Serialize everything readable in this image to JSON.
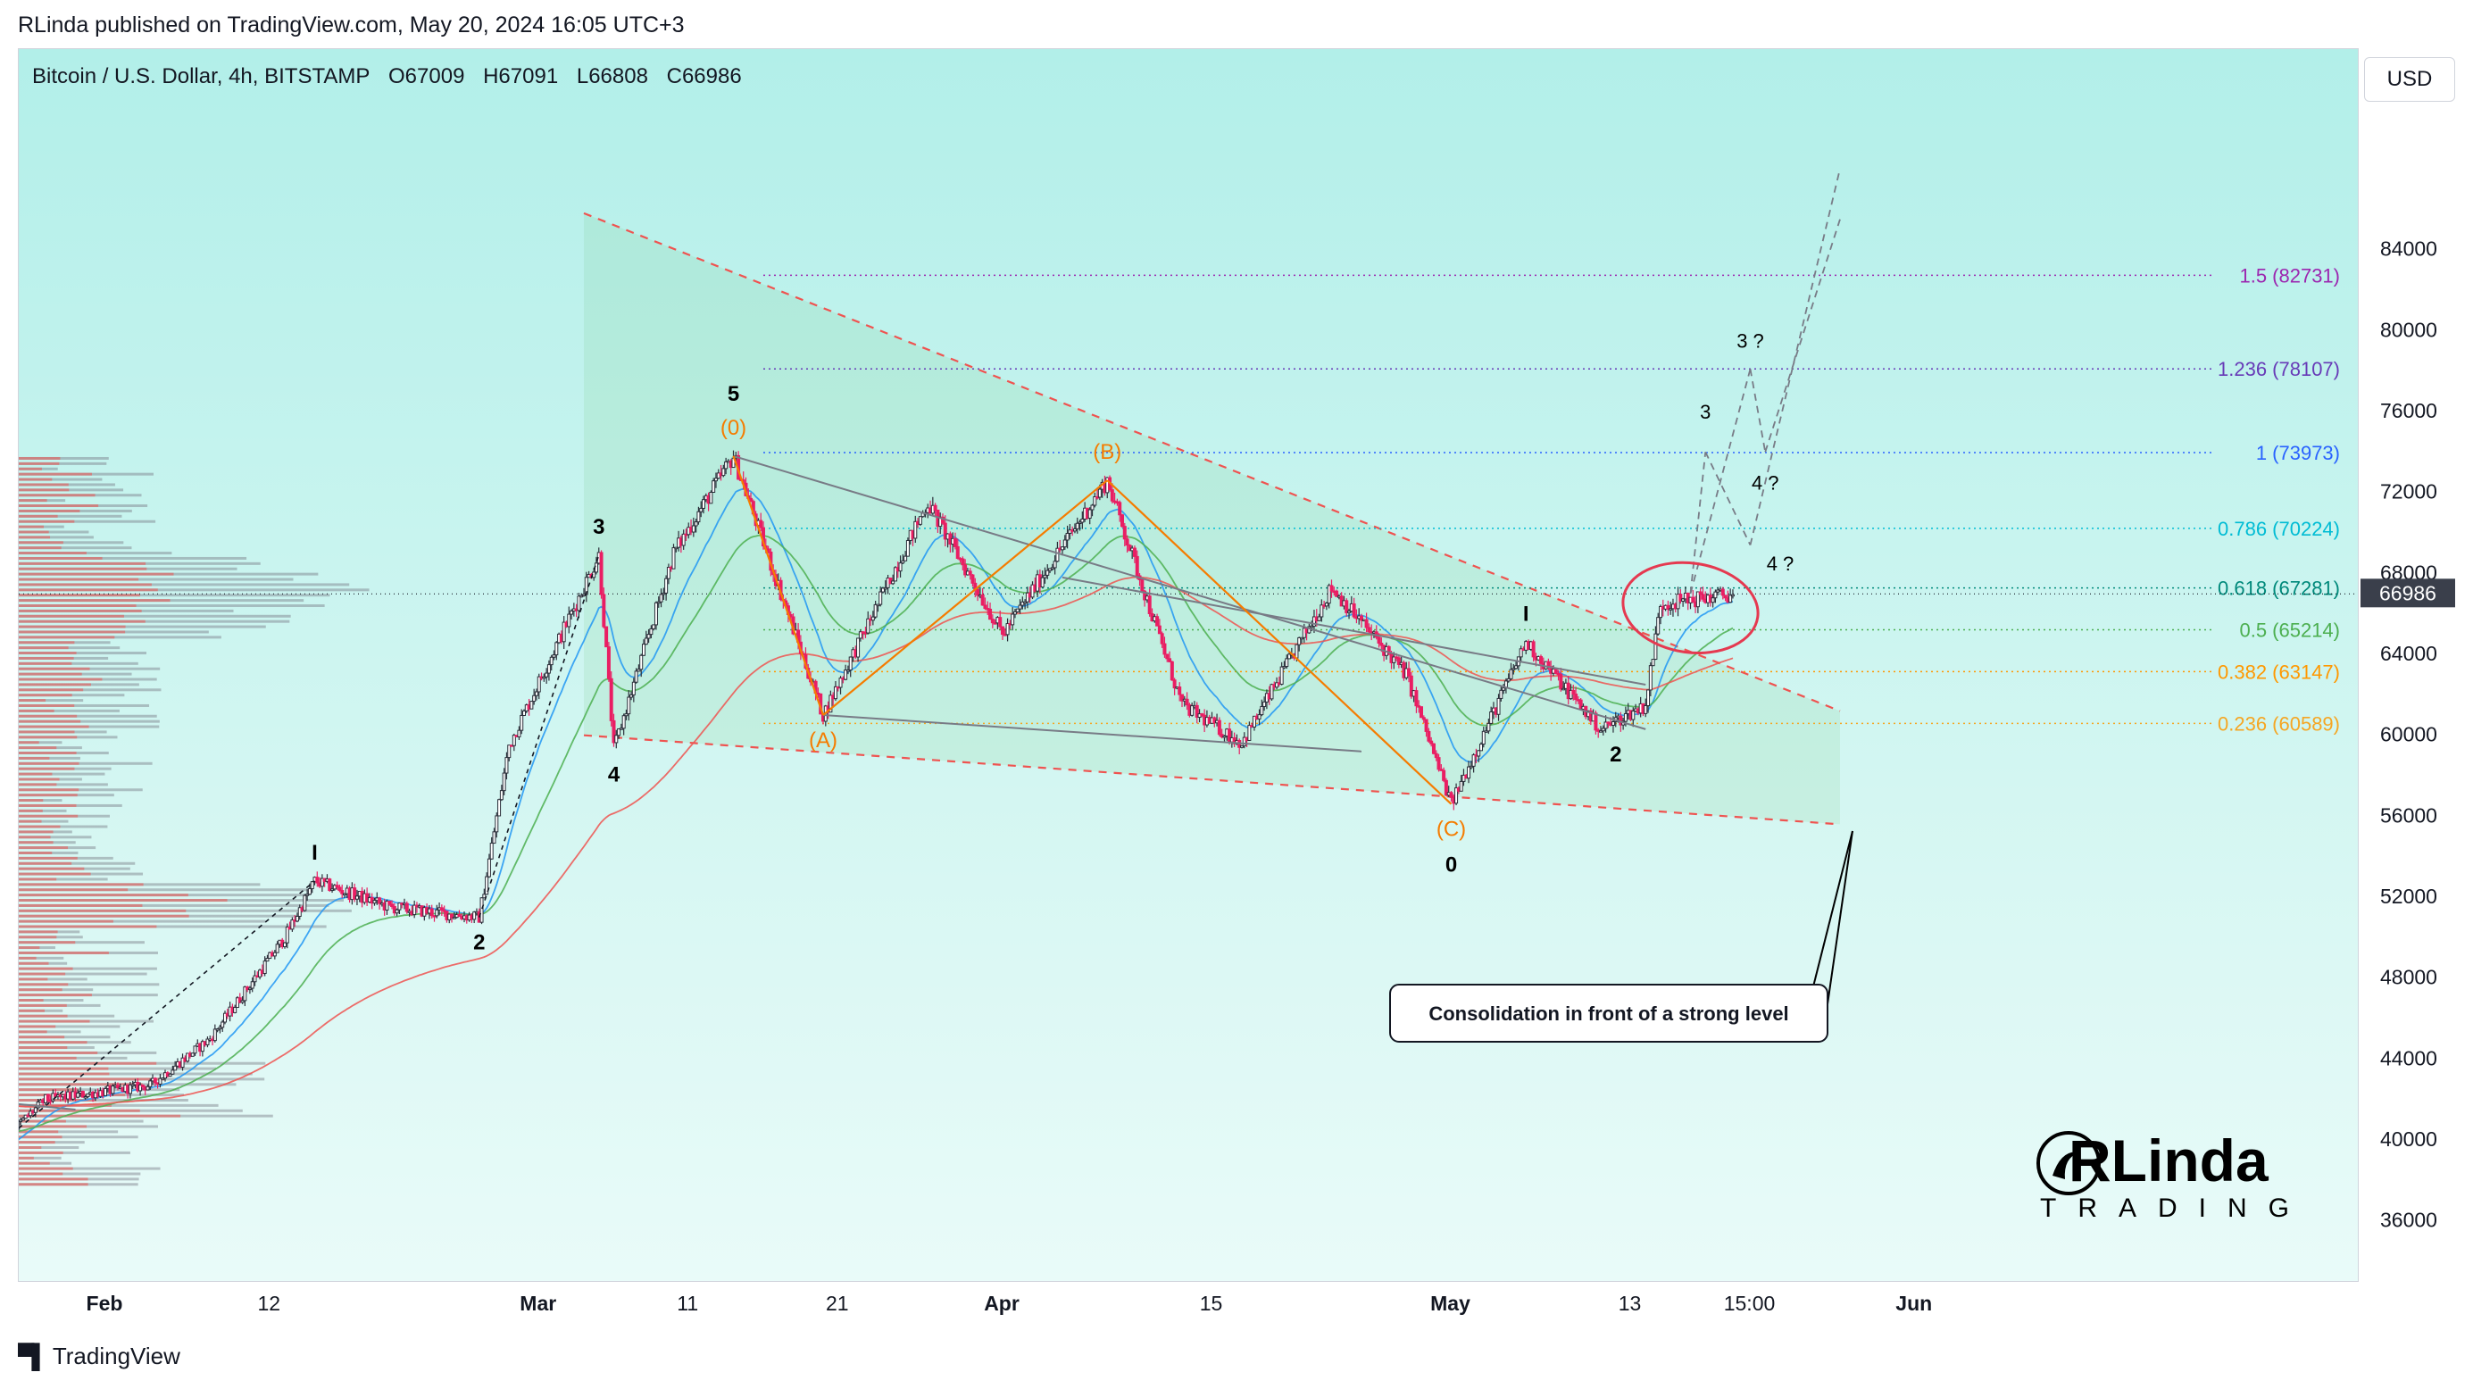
{
  "header": {
    "publisher_line": "RLinda published on TradingView.com, May 20, 2024 16:05 UTC+3"
  },
  "symbol": {
    "name": "Bitcoin / U.S. Dollar, 4h, BITSTAMP",
    "open": "O67009",
    "high": "H67091",
    "low": "L66808",
    "close": "C66986"
  },
  "currency_button": "USD",
  "footer": {
    "brand": "TradingView"
  },
  "logo": {
    "text_top": "RLinda",
    "text_bottom": "TRADING"
  },
  "callout": "Consolidation in front of a strong level",
  "colors": {
    "bull": "#26a69a",
    "bear": "#ef5350",
    "candle": "#e91e63",
    "fib_purple": "#9c27b0",
    "fib_blue": "#2962ff",
    "fib_teal": "#00bcd4",
    "fib_green": "#4caf50",
    "fib_orange": "#ff9800",
    "wave_orange": "#f57c00",
    "ma_blue": "#2196f3",
    "ma_green": "#4caf50",
    "ma_red": "#ef5350"
  },
  "chart_data": {
    "type": "candlestick",
    "title": "Bitcoin / U.S. Dollar, 4h, BITSTAMP",
    "ylim": [
      34000,
      88000
    ],
    "y_ticks": [
      "84000",
      "80000",
      "76000",
      "72000",
      "68000",
      "64000",
      "60000",
      "56000",
      "52000",
      "48000",
      "44000",
      "40000",
      "36000"
    ],
    "x_ticks": [
      "Feb",
      "12",
      "Mar",
      "11",
      "21",
      "Apr",
      "15",
      "May",
      "13",
      "15:00",
      "Jun"
    ],
    "current_price": "66986",
    "price_path": [
      {
        "date": "2024-01-16",
        "price": 43000
      },
      {
        "date": "2024-01-20",
        "price": 41500
      },
      {
        "date": "2024-01-23",
        "price": 38600
      },
      {
        "date": "2024-01-28",
        "price": 42000
      },
      {
        "date": "2024-02-04",
        "price": 42700
      },
      {
        "date": "2024-02-08",
        "price": 45000
      },
      {
        "date": "2024-02-13",
        "price": 50000
      },
      {
        "date": "2024-02-15",
        "price": 52800
      },
      {
        "date": "2024-02-20",
        "price": 51500
      },
      {
        "date": "2024-02-26",
        "price": 51000
      },
      {
        "date": "2024-02-28",
        "price": 59500
      },
      {
        "date": "2024-03-05",
        "price": 68900
      },
      {
        "date": "2024-03-06",
        "price": 59300
      },
      {
        "date": "2024-03-10",
        "price": 69000
      },
      {
        "date": "2024-03-14",
        "price": 73800
      },
      {
        "date": "2024-03-20",
        "price": 61000
      },
      {
        "date": "2024-03-27",
        "price": 71500
      },
      {
        "date": "2024-04-01",
        "price": 65000
      },
      {
        "date": "2024-04-08",
        "price": 72600
      },
      {
        "date": "2024-04-13",
        "price": 61500
      },
      {
        "date": "2024-04-17",
        "price": 59600
      },
      {
        "date": "2024-04-23",
        "price": 67300
      },
      {
        "date": "2024-04-28",
        "price": 63000
      },
      {
        "date": "2024-05-01",
        "price": 56600
      },
      {
        "date": "2024-05-06",
        "price": 64600
      },
      {
        "date": "2024-05-11",
        "price": 60300
      },
      {
        "date": "2024-05-14",
        "price": 61500
      },
      {
        "date": "2024-05-15",
        "price": 66500
      },
      {
        "date": "2024-05-20",
        "price": 66986
      }
    ],
    "fibonacci_levels": [
      {
        "label": "1.5 (82731)",
        "price": 82731,
        "color": "#9c27b0"
      },
      {
        "label": "1.236 (78107)",
        "price": 78107,
        "color": "#673ab7"
      },
      {
        "label": "1 (73973)",
        "price": 73973,
        "color": "#2962ff"
      },
      {
        "label": "0.786 (70224)",
        "price": 70224,
        "color": "#00bcd4"
      },
      {
        "label": "0.618 (67281)",
        "price": 67281,
        "color": "#00897b"
      },
      {
        "label": "0.5 (65214)",
        "price": 65214,
        "color": "#4caf50"
      },
      {
        "label": "0.382 (63147)",
        "price": 63147,
        "color": "#ff9800"
      },
      {
        "label": "0.236 (60589)",
        "price": 60589,
        "color": "#f5a623"
      }
    ],
    "wave_labels": [
      {
        "text": "0",
        "date": "2024-01-23",
        "price": 38600,
        "pos": "below",
        "color": "#000000"
      },
      {
        "text": "I",
        "date": "2024-02-15",
        "price": 52800,
        "pos": "above",
        "color": "#000000"
      },
      {
        "text": "2",
        "date": "2024-02-26",
        "price": 51000,
        "pos": "below",
        "color": "#000000"
      },
      {
        "text": "3",
        "date": "2024-03-05",
        "price": 68900,
        "pos": "above",
        "color": "#000000"
      },
      {
        "text": "4",
        "date": "2024-03-06",
        "price": 59300,
        "pos": "below",
        "color": "#000000"
      },
      {
        "text": "5",
        "date": "2024-03-14",
        "price": 73800,
        "pos": "above2",
        "color": "#000000"
      },
      {
        "text": "(0)",
        "date": "2024-03-14",
        "price": 73800,
        "pos": "above",
        "color": "#f57c00"
      },
      {
        "text": "(A)",
        "date": "2024-03-20",
        "price": 61000,
        "pos": "below",
        "color": "#f57c00"
      },
      {
        "text": "(B)",
        "date": "2024-04-08",
        "price": 72600,
        "pos": "above",
        "color": "#f57c00"
      },
      {
        "text": "(C)",
        "date": "2024-05-01",
        "price": 56600,
        "pos": "below",
        "color": "#f57c00"
      },
      {
        "text": "0",
        "date": "2024-05-01",
        "price": 56600,
        "pos": "below2",
        "color": "#000000"
      },
      {
        "text": "I",
        "date": "2024-05-06",
        "price": 64600,
        "pos": "above",
        "color": "#000000"
      },
      {
        "text": "2",
        "date": "2024-05-12",
        "price": 60300,
        "pos": "below",
        "color": "#000000"
      },
      {
        "text": "3",
        "date": "2024-05-18",
        "price": 76000,
        "pos": "plain",
        "color": "#000000"
      },
      {
        "text": "3 ?",
        "date": "2024-05-21",
        "price": 79500,
        "pos": "plain",
        "color": "#000000"
      },
      {
        "text": "4 ?",
        "date": "2024-05-22",
        "price": 72500,
        "pos": "plain",
        "color": "#000000"
      },
      {
        "text": "4 ?",
        "date": "2024-05-23",
        "price": 68500,
        "pos": "plain",
        "color": "#000000"
      }
    ],
    "projections": [
      [
        {
          "date": "2024-05-17",
          "price": 67000
        },
        {
          "date": "2024-05-21",
          "price": 78100
        },
        {
          "date": "2024-05-22",
          "price": 74000
        },
        {
          "date": "2024-05-27",
          "price": 85500
        }
      ],
      [
        {
          "date": "2024-05-17",
          "price": 67000
        },
        {
          "date": "2024-05-18",
          "price": 74000
        },
        {
          "date": "2024-05-21",
          "price": 69400
        },
        {
          "date": "2024-05-27",
          "price": 88000
        }
      ]
    ]
  }
}
